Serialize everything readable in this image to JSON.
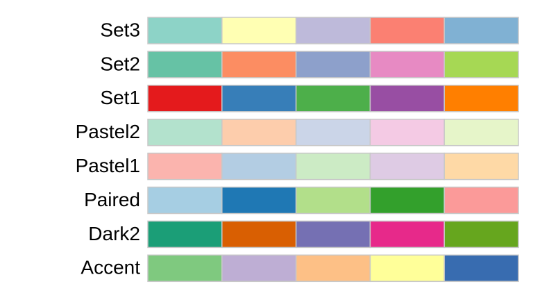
{
  "palettes": [
    {
      "name": "Set3",
      "colors": [
        "#8DD3C7",
        "#FFFFB3",
        "#BEBADA",
        "#FB8072",
        "#80B1D3"
      ]
    },
    {
      "name": "Set2",
      "colors": [
        "#66C2A5",
        "#FC8D62",
        "#8DA0CB",
        "#E78AC3",
        "#A6D854"
      ]
    },
    {
      "name": "Set1",
      "colors": [
        "#E41A1C",
        "#377EB8",
        "#4DAF4A",
        "#984EA3",
        "#FF7F00"
      ]
    },
    {
      "name": "Pastel2",
      "colors": [
        "#B3E2CD",
        "#FDCDAC",
        "#CBD5E8",
        "#F4CAE4",
        "#E6F5C9"
      ]
    },
    {
      "name": "Pastel1",
      "colors": [
        "#FBB4AE",
        "#B3CDE3",
        "#CCEBC5",
        "#DECBE4",
        "#FED9A6"
      ]
    },
    {
      "name": "Paired",
      "colors": [
        "#A6CEE3",
        "#1F78B4",
        "#B2DF8A",
        "#33A02C",
        "#FB9A99"
      ]
    },
    {
      "name": "Dark2",
      "colors": [
        "#1B9E77",
        "#D95F02",
        "#7570B3",
        "#E7298A",
        "#66A61E"
      ]
    },
    {
      "name": "Accent",
      "colors": [
        "#7FC97F",
        "#BEAED4",
        "#FDC086",
        "#FFFF99",
        "#386CB0"
      ]
    }
  ]
}
